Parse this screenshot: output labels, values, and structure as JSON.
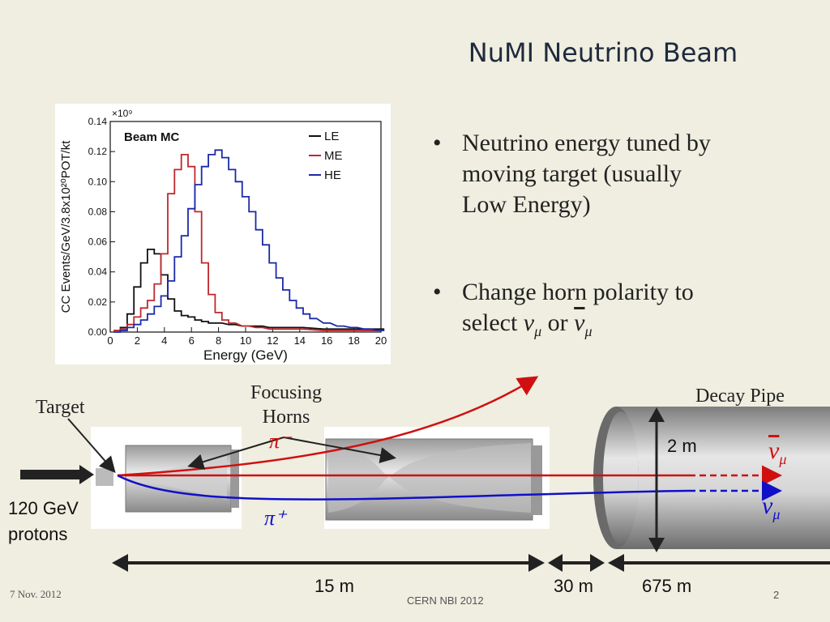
{
  "slide": {
    "title": "NuMI Neutrino Beam",
    "bullets": [
      {
        "text1": "Neutrino energy tuned by",
        "text2": "moving target (usually",
        "text3": "Low Energy)"
      },
      {
        "text1": "Change horn polarity to",
        "text2_prefix": "select ",
        "nu_mu": "ν",
        "mu_sub": "μ",
        "or": " or ",
        "nu_mu_bar": "ν",
        "mu_sub_bar": "μ"
      }
    ],
    "bullet_glyph": "•"
  },
  "chart_data": {
    "type": "line",
    "title": "",
    "annotation": "Beam MC",
    "exponent_label": "×10⁹",
    "xlabel": "Energy (GeV)",
    "ylabel": "CC Events/GeV/3.8x10²⁰POT/kt",
    "xlim": [
      0,
      20
    ],
    "ylim": [
      0,
      0.14
    ],
    "xticks": [
      "0",
      "2",
      "4",
      "6",
      "8",
      "10",
      "12",
      "14",
      "16",
      "18",
      "20"
    ],
    "yticks": [
      "0.00",
      "0.02",
      "0.04",
      "0.06",
      "0.08",
      "0.10",
      "0.12",
      "0.14"
    ],
    "legend_position": "top-right",
    "series": [
      {
        "name": "LE",
        "color": "#111111",
        "x": [
          0.5,
          1,
          1.5,
          2,
          2.5,
          3,
          3.5,
          4,
          4.5,
          5,
          5.5,
          6,
          6.5,
          7,
          7.5,
          8,
          9,
          10,
          11,
          12,
          13,
          14,
          16,
          18,
          20
        ],
        "y": [
          0.001,
          0.003,
          0.012,
          0.03,
          0.046,
          0.055,
          0.052,
          0.038,
          0.022,
          0.014,
          0.011,
          0.01,
          0.008,
          0.007,
          0.006,
          0.006,
          0.005,
          0.004,
          0.004,
          0.003,
          0.003,
          0.003,
          0.002,
          0.002,
          0.002
        ]
      },
      {
        "name": "ME",
        "color": "#c0282d",
        "x": [
          0.5,
          1,
          1.5,
          2,
          2.5,
          3,
          3.5,
          4,
          4.5,
          5,
          5.5,
          6,
          6.5,
          7,
          7.5,
          8,
          8.5,
          9,
          10,
          11,
          12,
          13,
          14,
          16,
          18,
          20
        ],
        "y": [
          0.001,
          0.002,
          0.005,
          0.01,
          0.016,
          0.021,
          0.032,
          0.052,
          0.092,
          0.108,
          0.118,
          0.11,
          0.08,
          0.046,
          0.025,
          0.013,
          0.008,
          0.006,
          0.004,
          0.003,
          0.002,
          0.002,
          0.002,
          0.001,
          0.001,
          0.001
        ]
      },
      {
        "name": "HE",
        "color": "#1b2aa8",
        "x": [
          0.5,
          1,
          1.5,
          2,
          2.5,
          3,
          3.5,
          4,
          4.5,
          5,
          5.5,
          6,
          6.5,
          7,
          7.5,
          8,
          8.5,
          9,
          9.5,
          10,
          10.5,
          11,
          11.5,
          12,
          12.5,
          13,
          13.5,
          14,
          14.5,
          15,
          16,
          17,
          18,
          19,
          20
        ],
        "y": [
          0.0,
          0.001,
          0.003,
          0.005,
          0.008,
          0.012,
          0.017,
          0.024,
          0.034,
          0.05,
          0.064,
          0.082,
          0.098,
          0.11,
          0.118,
          0.121,
          0.116,
          0.108,
          0.1,
          0.09,
          0.08,
          0.068,
          0.058,
          0.046,
          0.036,
          0.028,
          0.021,
          0.016,
          0.012,
          0.009,
          0.006,
          0.004,
          0.003,
          0.002,
          0.001
        ]
      }
    ]
  },
  "diagram": {
    "target_label": "Target",
    "focusing_label_1": "Focusing",
    "focusing_label_2": "Horns",
    "decay_pipe_label": "Decay Pipe",
    "diameter_label": "2 m",
    "pi_minus": "π⁻",
    "pi_plus": "π⁺",
    "nu_bar_label": "ν",
    "nu_label": "ν",
    "mu_sub": "μ",
    "protons_label_1": "120 GeV",
    "protons_label_2": "protons",
    "dist_1": "15 m",
    "dist_2": "30 m",
    "dist_3": "675 m",
    "colors": {
      "red": "#d01010",
      "blue": "#1010c8",
      "black": "#222222"
    }
  },
  "footer": {
    "date": "7 Nov. 2012",
    "center": "CERN NBI 2012",
    "page": "2"
  }
}
